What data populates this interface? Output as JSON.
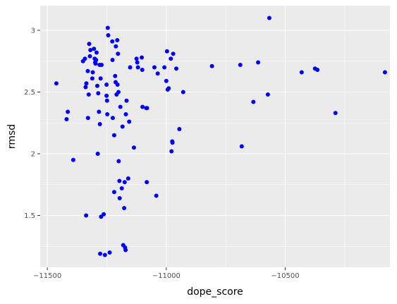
{
  "chart_data": {
    "type": "scatter",
    "title": "",
    "xlabel": "dope_score",
    "ylabel": "rmsd",
    "xlim": [
      -11530,
      -10060
    ],
    "ylim": [
      1.08,
      3.2
    ],
    "x_ticks": [
      {
        "value": -11500,
        "label": "−11500"
      },
      {
        "value": -11000,
        "label": "−11000"
      },
      {
        "value": -10500,
        "label": "−10500"
      }
    ],
    "x_minor_ticks": [
      -11250,
      -10750,
      -10250
    ],
    "y_ticks": [
      {
        "value": 1.5,
        "label": "1.5"
      },
      {
        "value": 2.0,
        "label": "2"
      },
      {
        "value": 2.5,
        "label": "2.5"
      },
      {
        "value": 3.0,
        "label": "3"
      }
    ],
    "y_minor_ticks": [
      1.25,
      1.75,
      2.25,
      2.75
    ],
    "grid": true,
    "point_color": "#0000ff",
    "panel_color": "#ebebeb",
    "grid_color": "#ffffff",
    "points": [
      [
        -11462,
        2.57
      ],
      [
        -11414,
        2.34
      ],
      [
        -11419,
        2.28
      ],
      [
        -11391,
        1.95
      ],
      [
        -11350,
        2.75
      ],
      [
        -11342,
        2.77
      ],
      [
        -11339,
        2.54
      ],
      [
        -11336,
        2.57
      ],
      [
        -11337,
        1.5
      ],
      [
        -11330,
        2.67
      ],
      [
        -11329,
        2.29
      ],
      [
        -11326,
        2.48
      ],
      [
        -11324,
        2.89
      ],
      [
        -11321,
        2.79
      ],
      [
        -11319,
        2.84
      ],
      [
        -11311,
        2.61
      ],
      [
        -11309,
        2.66
      ],
      [
        -11304,
        2.85
      ],
      [
        -11301,
        2.77
      ],
      [
        -11299,
        2.74
      ],
      [
        -11297,
        2.73
      ],
      [
        -11295,
        2.76
      ],
      [
        -11293,
        2.82
      ],
      [
        -11290,
        2.55
      ],
      [
        -11288,
        2.0
      ],
      [
        -11286,
        2.49
      ],
      [
        -11283,
        2.34
      ],
      [
        -11280,
        2.72
      ],
      [
        -11279,
        2.24
      ],
      [
        -11276,
        2.61
      ],
      [
        -11274,
        1.49
      ],
      [
        -11272,
        2.72
      ],
      [
        -11278,
        1.19
      ],
      [
        -11263,
        1.51
      ],
      [
        -11258,
        1.18
      ],
      [
        -11251,
        2.56
      ],
      [
        -11251,
        2.47
      ],
      [
        -11249,
        2.43
      ],
      [
        -11248,
        2.32
      ],
      [
        -11246,
        3.02
      ],
      [
        -11244,
        2.96
      ],
      [
        -11238,
        1.2
      ],
      [
        -11227,
        2.91
      ],
      [
        -11226,
        2.76
      ],
      [
        -11225,
        2.29
      ],
      [
        -11219,
        1.69
      ],
      [
        -11219,
        2.15
      ],
      [
        -11215,
        2.63
      ],
      [
        -11213,
        2.58
      ],
      [
        -11212,
        2.87
      ],
      [
        -11209,
        2.48
      ],
      [
        -11206,
        2.92
      ],
      [
        -11205,
        2.56
      ],
      [
        -11203,
        2.81
      ],
      [
        -11201,
        2.5
      ],
      [
        -11200,
        1.94
      ],
      [
        -11197,
        1.78
      ],
      [
        -11196,
        1.64
      ],
      [
        -11193,
        2.38
      ],
      [
        -11187,
        1.72
      ],
      [
        -11184,
        2.22
      ],
      [
        -11181,
        1.26
      ],
      [
        -11177,
        1.56
      ],
      [
        -11175,
        1.77
      ],
      [
        -11173,
        1.24
      ],
      [
        -11171,
        1.22
      ],
      [
        -11170,
        2.32
      ],
      [
        -11167,
        2.43
      ],
      [
        -11160,
        1.8
      ],
      [
        -11156,
        2.26
      ],
      [
        -11152,
        2.7
      ],
      [
        -11136,
        2.05
      ],
      [
        -11125,
        2.77
      ],
      [
        -11122,
        2.74
      ],
      [
        -11119,
        2.7
      ],
      [
        -11103,
        2.78
      ],
      [
        -11101,
        2.68
      ],
      [
        -11100,
        2.38
      ],
      [
        -11084,
        2.37
      ],
      [
        -11081,
        2.37
      ],
      [
        -11082,
        1.77
      ],
      [
        -11050,
        2.7
      ],
      [
        -11042,
        1.66
      ],
      [
        -11036,
        2.65
      ],
      [
        -11008,
        2.7
      ],
      [
        -11000,
        2.59
      ],
      [
        -10997,
        2.83
      ],
      [
        -10994,
        2.52
      ],
      [
        -10990,
        2.53
      ],
      [
        -10981,
        2.77
      ],
      [
        -10978,
        2.02
      ],
      [
        -10975,
        2.1
      ],
      [
        -10974,
        2.09
      ],
      [
        -10971,
        2.81
      ],
      [
        -10958,
        2.69
      ],
      [
        -10945,
        2.2
      ],
      [
        -10929,
        2.5
      ],
      [
        -10808,
        2.71
      ],
      [
        -10689,
        2.72
      ],
      [
        -10683,
        2.06
      ],
      [
        -10634,
        2.42
      ],
      [
        -10614,
        2.74
      ],
      [
        -10573,
        2.48
      ],
      [
        -10567,
        3.1
      ],
      [
        -10431,
        2.66
      ],
      [
        -10375,
        2.69
      ],
      [
        -10365,
        2.68
      ],
      [
        -10289,
        2.33
      ],
      [
        -10081,
        2.66
      ]
    ]
  }
}
